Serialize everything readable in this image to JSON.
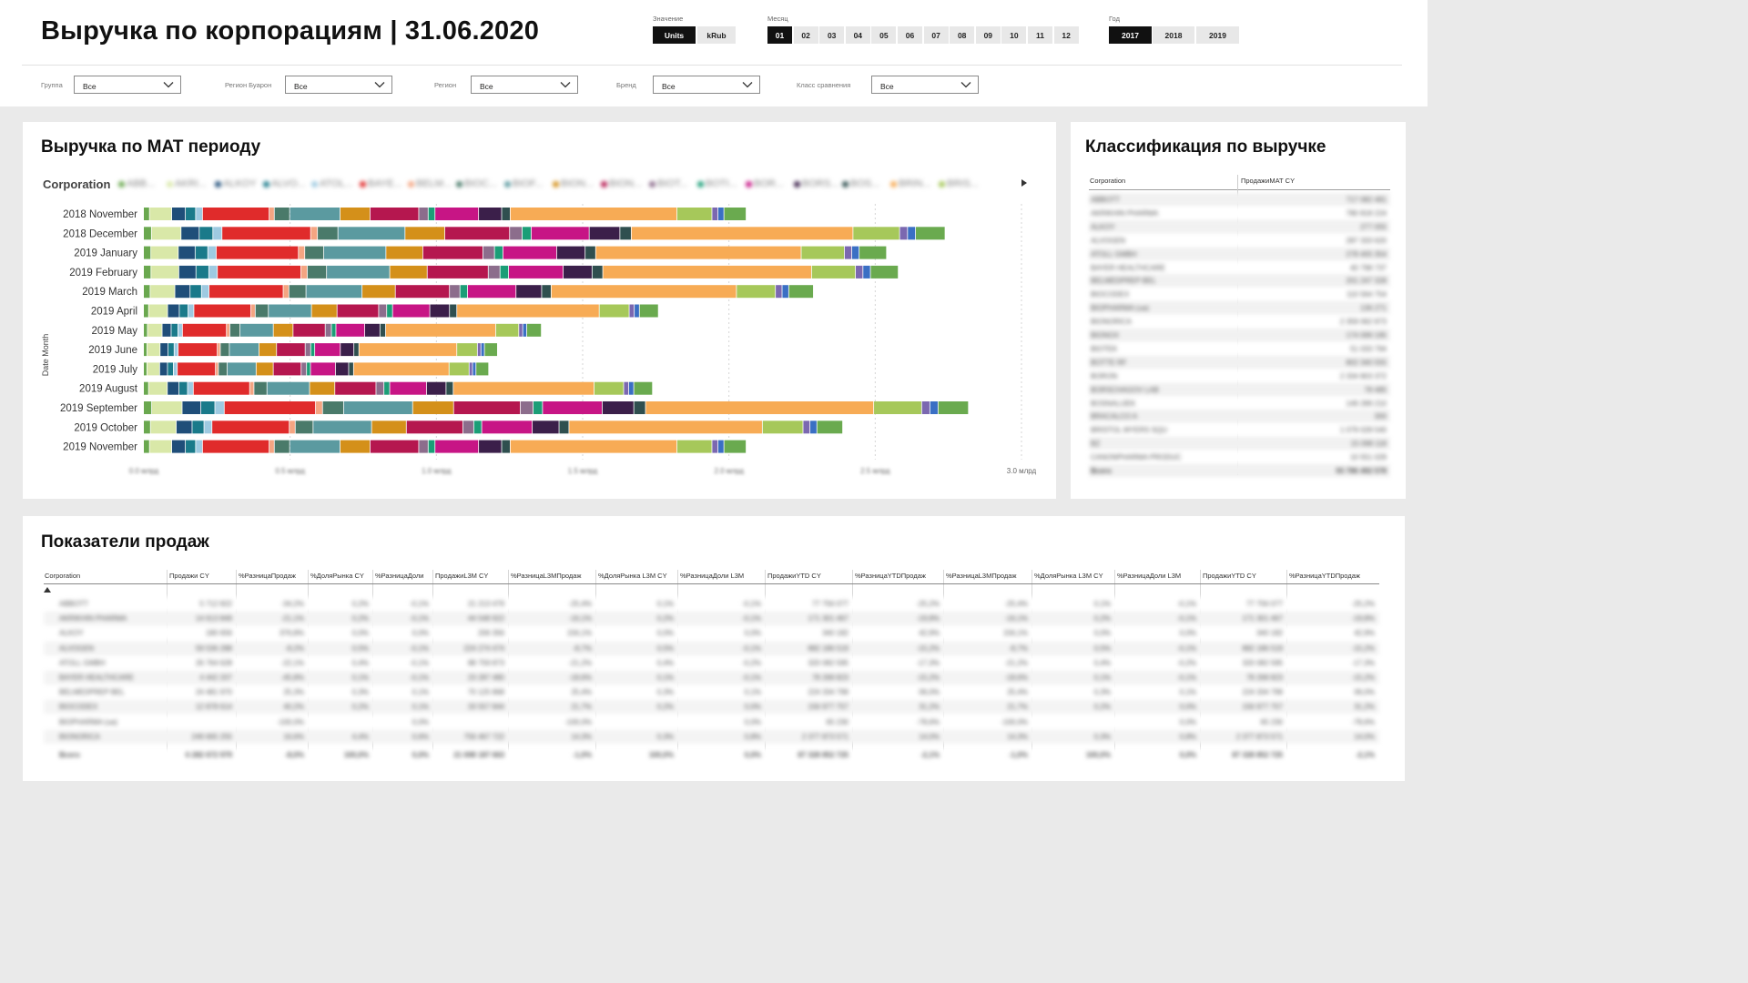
{
  "header": {
    "title": "Выручка по корпорациям | 31.06.2020"
  },
  "slicers": {
    "value": {
      "label": "Значение",
      "options": [
        "Units",
        "kRub"
      ],
      "selected": "Units"
    },
    "month": {
      "label": "Месяц",
      "options": [
        "01",
        "02",
        "03",
        "04",
        "05",
        "06",
        "07",
        "08",
        "09",
        "10",
        "11",
        "12"
      ],
      "selected": "01"
    },
    "year": {
      "label": "Год",
      "options": [
        "2017",
        "2018",
        "2019"
      ],
      "selected": "2017"
    }
  },
  "filters": [
    {
      "label": "Группа",
      "value": "Все"
    },
    {
      "label": "Регион Буарон",
      "value": "Все"
    },
    {
      "label": "Регион",
      "value": "Все"
    },
    {
      "label": "Бренд",
      "value": "Все"
    },
    {
      "label": "Класс сравнения",
      "value": "Все"
    }
  ],
  "mat_panel": {
    "title": "Выручка по MAT периоду"
  },
  "class_panel": {
    "title": "Классификация по выручке"
  },
  "sales_panel": {
    "title": "Показатели продаж"
  },
  "colors": {
    "segments": [
      "#6aa84f",
      "#d9e8a8",
      "#1f4e79",
      "#1a7a8a",
      "#9ecae1",
      "#e02b2b",
      "#f4a582",
      "#4a7a6a",
      "#5b9aa0",
      "#d4901a",
      "#b5174f",
      "#8c6d8c",
      "#1b9e77",
      "#c71585",
      "#3b1f4a",
      "#2f4f4f",
      "#f7ab55",
      "#a6c85a",
      "#7b68b0",
      "#3a6fc4",
      "#6aaa4f"
    ],
    "selected_button": "#111111",
    "button": "#e8e8e8"
  },
  "chart_data": {
    "type": "bar",
    "orientation": "horizontal",
    "stacked": true,
    "ylabel": "Date Month",
    "legend_title": "Corporation",
    "legend_entries": [
      "ABB...",
      "AKRI...",
      "ALKOY",
      "ALVO...",
      "ATOL...",
      "BAYE...",
      "BELM...",
      "BIOC...",
      "BIOF...",
      "BION...",
      "BION...",
      "BIOT...",
      "BOTI...",
      "BOR...",
      "BORS...",
      "BOS...",
      "BRIN...",
      "BRIS..."
    ],
    "categories": [
      "2018 November",
      "2018 December",
      "2019 January",
      "2019 February",
      "2019 March",
      "2019 April",
      "2019 May",
      "2019 June",
      "2019 July",
      "2019 August",
      "2019 September",
      "2019 October",
      "2019 November"
    ],
    "x_ticks": [
      "0.0 млрд",
      "0.5 млрд",
      "1.0 млрд",
      "1.5 млрд",
      "2.0 млрд",
      "2.5 млрд",
      "3.0 млрд"
    ],
    "xlim": [
      0,
      3.0
    ],
    "totals_mlrd": [
      2.06,
      2.74,
      2.54,
      2.58,
      2.29,
      1.76,
      1.36,
      1.21,
      1.18,
      1.74,
      2.82,
      2.39,
      2.06
    ]
  },
  "class_table": {
    "columns": [
      "Corporation",
      "ПродажиМАТ CY"
    ],
    "rows": [
      [
        "ABBOTT",
        "717 082 481"
      ],
      [
        "AKRIKHIN PHARMA",
        "780 818 224"
      ],
      [
        "ALKOY",
        "277 055"
      ],
      [
        "ALVOGEN",
        "287 333 620"
      ],
      [
        "ATOLL GMBH",
        "278 405 354"
      ],
      [
        "BAYER HEALTHCARE",
        "40 798 737"
      ],
      [
        "BELMEDPREP BEL",
        "201 247 328"
      ],
      [
        "BIOCODEX",
        "110 564 754"
      ],
      [
        "BIOPHARMA (ua)",
        "136 271"
      ],
      [
        "BIONORICA",
        "2 359 062 873"
      ],
      [
        "BIONOX",
        "174 099 195"
      ],
      [
        "BIOTEK",
        "51 033 794"
      ],
      [
        "BOTTE RF",
        "802 340 555"
      ],
      [
        "BORON",
        "2 334 803 372"
      ],
      [
        "BORSCHAGOV LAB",
        "78 485"
      ],
      [
        "BOSNALIJEK",
        "149 289 210"
      ],
      [
        "BRACALCO A",
        "300"
      ],
      [
        "BRISTOL MYERS SQU",
        "1 079 028 540"
      ],
      [
        "BZ",
        "15 098 118"
      ],
      [
        "CANONPHARMA PRODUC",
        "10 551 029"
      ]
    ],
    "total": [
      "Всего",
      "55 786 492 578"
    ]
  },
  "sales_table": {
    "columns": [
      "Corporation",
      "Продажи CY",
      "%РазницаПродаж",
      "%ДоляРынка CY",
      "%РазницаДоли",
      "ПродажиL3M CY",
      "%РазницаL3MПродаж",
      "%ДоляРынка L3M CY",
      "%РазницаДоли L3M",
      "ПродажиYTD CY",
      "%РазницаYTDПродаж",
      "%РазницаL3MПродаж",
      "%ДоляРынка L3M CY",
      "%РазницаДоли L3M",
      "ПродажиYTD CY",
      "%РазницаYTDПродаж"
    ],
    "rows": [
      [
        "ABBOTT",
        "5 712 822",
        "-34,2%",
        "0,2%",
        "-0,1%",
        "21 213 479",
        "-25,4%",
        "0,1%",
        "-0,1%",
        "77 756 077",
        "-25,2%",
        "-25,4%",
        "0,1%",
        "-0,1%",
        "77 756 077",
        "-25,2%"
      ],
      [
        "AKRIKHIN PHARMA",
        "14 613 849",
        "-21,1%",
        "0,2%",
        "-0,1%",
        "44 548 922",
        "-16,1%",
        "0,2%",
        "-0,1%",
        "171 301 467",
        "-19,8%",
        "-16,1%",
        "0,2%",
        "-0,1%",
        "171 301 467",
        "-19,8%"
      ],
      [
        "ALKOY",
        "180 656",
        "376,8%",
        "0,0%",
        "0,0%",
        "206 356",
        "156,1%",
        "0,0%",
        "0,0%",
        "340 182",
        "42,9%",
        "156,1%",
        "0,0%",
        "0,0%",
        "340 182",
        "42,9%"
      ],
      [
        "ALVOGEN",
        "59 536 288",
        "-8,2%",
        "0,5%",
        "-0,1%",
        "224 274 474",
        "-8,7%",
        "0,5%",
        "-0,1%",
        "882 186 519",
        "-15,2%",
        "-8,7%",
        "0,5%",
        "-0,1%",
        "882 186 519",
        "-15,2%"
      ],
      [
        "ATOLL GMBH",
        "26 764 628",
        "-22,1%",
        "0,4%",
        "-0,1%",
        "88 759 873",
        "-21,2%",
        "0,4%",
        "-0,2%",
        "320 082 595",
        "-17,3%",
        "-21,2%",
        "0,4%",
        "-0,2%",
        "320 082 595",
        "-17,3%"
      ],
      [
        "BAYER HEALTHCARE",
        "4 442 207",
        "-45,8%",
        "0,1%",
        "-0,1%",
        "23 287 480",
        "-18,6%",
        "0,1%",
        "-0,1%",
        "78 268 823",
        "-15,2%",
        "-18,6%",
        "0,1%",
        "-0,1%",
        "78 268 823",
        "-15,2%"
      ],
      [
        "BELMEDPREP BEL",
        "24 481 970",
        "25,3%",
        "0,3%",
        "0,1%",
        "70 125 868",
        "25,4%",
        "0,3%",
        "0,1%",
        "224 334 799",
        "06,0%",
        "25,4%",
        "0,3%",
        "0,1%",
        "224 334 799",
        "06,0%"
      ],
      [
        "BIOCODEX",
        "12 878 614",
        "40,2%",
        "0,2%",
        "0,1%",
        "33 557 844",
        "21,7%",
        "0,2%",
        "0,0%",
        "156 977 757",
        "31,2%",
        "21,7%",
        "0,2%",
        "0,0%",
        "156 977 757",
        "31,2%"
      ],
      [
        "BIOPHARMA (ua)",
        "",
        "-100,0%",
        "",
        "0,0%",
        "",
        "-100,0%",
        "",
        "0,0%",
        "65 230",
        "-78,6%",
        "-100,0%",
        "",
        "0,0%",
        "65 230",
        "-78,6%"
      ],
      [
        "BIONORICA",
        "249 665 255",
        "16,6%",
        "4,4%",
        "0,6%",
        "756 467 722",
        "14,3%",
        "0,3%",
        "0,8%",
        "2 377 873 571",
        "14,0%",
        "14,3%",
        "0,3%",
        "0,8%",
        "2 377 873 571",
        "14,0%"
      ]
    ],
    "total": [
      "Всего",
      "6 282 672 979",
      "-8,0%",
      "100,0%",
      "0,0%",
      "21 698 187 663",
      "-1,0%",
      "100,0%",
      "0,0%",
      "87 328 852 725",
      "-2,1%",
      "-1,0%",
      "100,0%",
      "0,0%",
      "87 328 852 725",
      "-2,1%"
    ]
  }
}
